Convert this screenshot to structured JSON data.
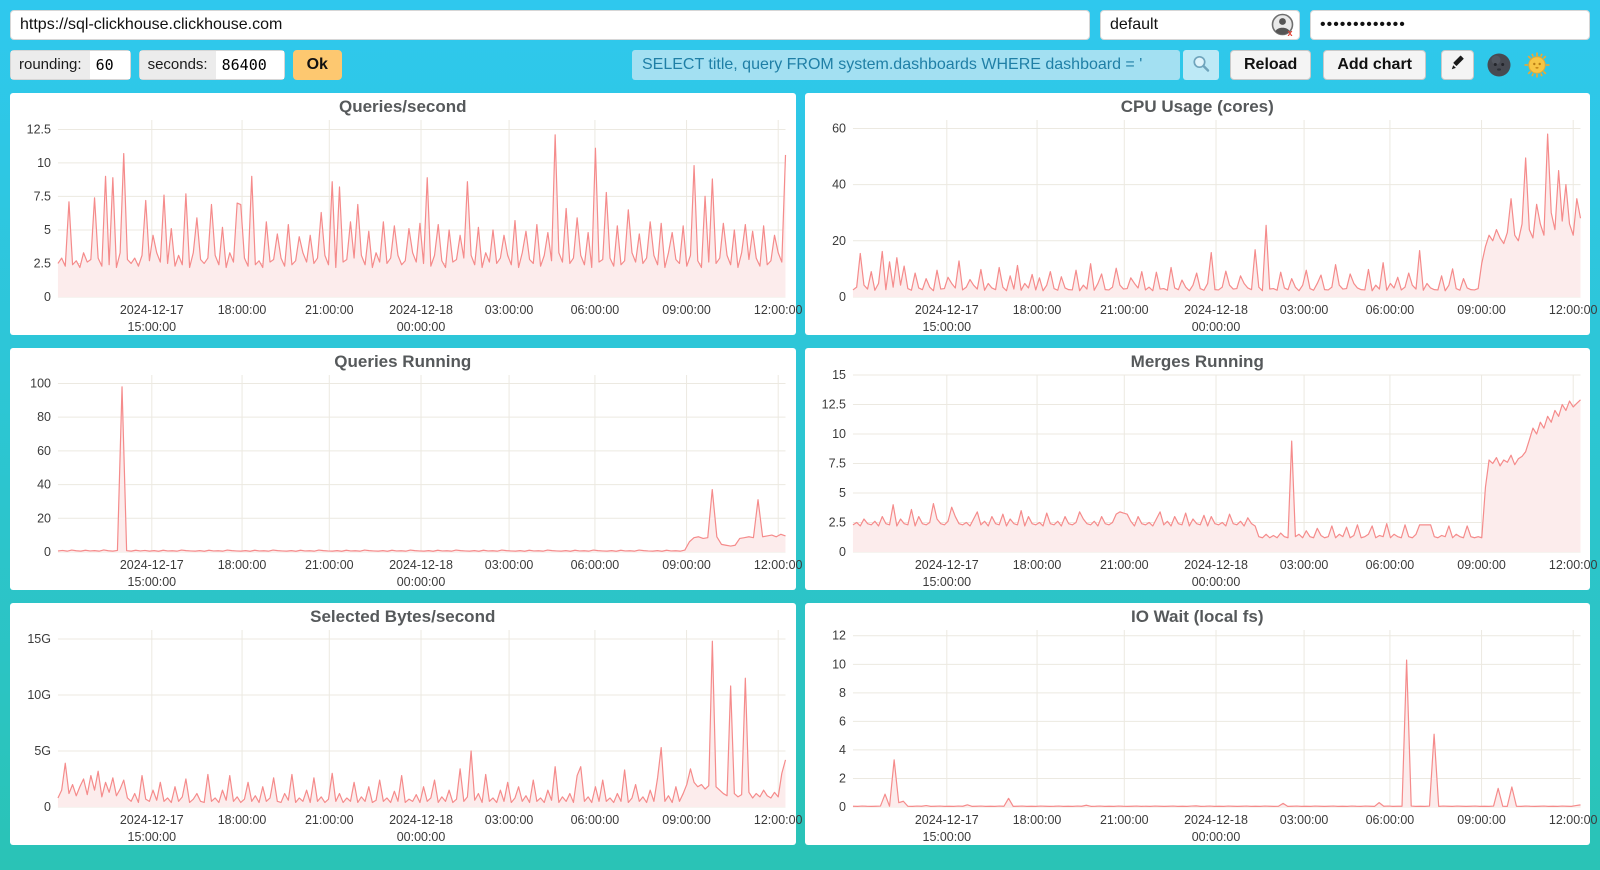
{
  "topbar": {
    "url_value": "https://sql-clickhouse.clickhouse.com",
    "user_value": "default",
    "password_masked": "•••••••••••••"
  },
  "toolbar": {
    "rounding_label": "rounding:",
    "rounding_value": "60",
    "seconds_label": "seconds:",
    "seconds_value": "86400",
    "ok_label": "Ok",
    "query_value": "SELECT title, query FROM system.dashboards WHERE dashboard = '",
    "reload_label": "Reload",
    "add_chart_label": "Add chart"
  },
  "colors": {
    "background_top": "#2fc8ee",
    "background_bottom": "#2ac3b6",
    "panel": "#ffffff",
    "series_line": "#f58b8b",
    "series_fill": "#fcecec",
    "grid": "#ece9e1",
    "ok_button": "#fdc870",
    "query_input_bg": "#a3e0f2",
    "query_input_text": "#1f7fa6"
  },
  "chart_axis": {
    "x_ticks": [
      {
        "f": 0.129,
        "label": "2024-12-17|15:00:00"
      },
      {
        "f": 0.253,
        "label": "18:00:00"
      },
      {
        "f": 0.373,
        "label": "21:00:00"
      },
      {
        "f": 0.499,
        "label": "2024-12-18|00:00:00"
      },
      {
        "f": 0.62,
        "label": "03:00:00"
      },
      {
        "f": 0.738,
        "label": "06:00:00"
      },
      {
        "f": 0.864,
        "label": "09:00:00"
      },
      {
        "f": 0.99,
        "label": "12:00:00"
      }
    ]
  },
  "chart_data": [
    {
      "type": "area",
      "title": "Queries/second",
      "ylim": [
        0,
        13.2
      ],
      "yticks": [
        {
          "v": 0,
          "label": "0"
        },
        {
          "v": 2.5,
          "label": "2.5"
        },
        {
          "v": 5,
          "label": "5"
        },
        {
          "v": 7.5,
          "label": "7.5"
        },
        {
          "v": 10,
          "label": "10"
        },
        {
          "v": 12.5,
          "label": "12.5"
        }
      ],
      "values": [
        2.5,
        2.9,
        2.3,
        7.1,
        2.4,
        2.7,
        2.2,
        3.3,
        2.6,
        2.8,
        7.4,
        2.9,
        2.3,
        9.0,
        2.4,
        8.9,
        2.2,
        3.3,
        10.7,
        2.8,
        2.5,
        2.9,
        2.3,
        3.1,
        7.2,
        2.7,
        4.6,
        3.3,
        2.6,
        7.6,
        2.5,
        5.1,
        2.3,
        3.1,
        2.4,
        7.7,
        2.2,
        3.3,
        5.9,
        2.8,
        2.5,
        2.9,
        6.9,
        3.1,
        2.4,
        5.2,
        2.2,
        3.3,
        2.6,
        7.0,
        6.9,
        2.9,
        2.3,
        9.0,
        2.4,
        2.7,
        2.2,
        5.6,
        2.6,
        2.8,
        4.7,
        2.9,
        2.3,
        5.4,
        2.4,
        2.7,
        4.5,
        3.3,
        2.6,
        4.6,
        2.5,
        2.9,
        6.3,
        3.1,
        2.4,
        8.6,
        2.2,
        8.2,
        2.6,
        2.8,
        5.6,
        2.9,
        6.9,
        3.1,
        2.4,
        4.9,
        2.2,
        3.3,
        2.6,
        5.6,
        2.5,
        2.9,
        5.3,
        3.1,
        2.4,
        2.7,
        5.1,
        3.3,
        2.6,
        5.5,
        2.5,
        8.9,
        2.3,
        3.1,
        5.4,
        2.7,
        2.2,
        5.0,
        2.6,
        2.8,
        4.6,
        2.9,
        8.6,
        3.1,
        2.4,
        5.2,
        2.2,
        3.3,
        2.6,
        5.0,
        2.5,
        2.9,
        4.6,
        3.1,
        2.4,
        5.7,
        2.2,
        3.3,
        4.9,
        2.8,
        2.5,
        5.4,
        2.3,
        3.1,
        4.8,
        2.7,
        12.1,
        3.3,
        2.6,
        6.6,
        2.5,
        2.9,
        5.9,
        3.1,
        2.4,
        4.8,
        2.2,
        11.1,
        2.6,
        2.8,
        7.8,
        2.9,
        2.3,
        5.3,
        2.4,
        2.7,
        6.5,
        3.3,
        2.6,
        4.7,
        2.5,
        2.9,
        5.6,
        3.1,
        2.4,
        5.5,
        2.2,
        3.3,
        4.8,
        2.8,
        2.5,
        5.3,
        2.3,
        3.1,
        9.8,
        2.7,
        2.2,
        7.5,
        2.6,
        8.8,
        2.5,
        2.9,
        5.5,
        3.1,
        2.4,
        5.0,
        2.2,
        3.3,
        5.4,
        2.8,
        4.9,
        2.9,
        2.3,
        5.3,
        2.4,
        2.7,
        4.6,
        3.3,
        2.6,
        10.6
      ]
    },
    {
      "type": "area",
      "title": "CPU Usage (cores)",
      "ylim": [
        0,
        63
      ],
      "yticks": [
        {
          "v": 0,
          "label": "0"
        },
        {
          "v": 20,
          "label": "20"
        },
        {
          "v": 40,
          "label": "40"
        },
        {
          "v": 60,
          "label": "60"
        }
      ],
      "values": [
        2.5,
        3.5,
        15.5,
        4.2,
        2.8,
        9.0,
        2.4,
        4.8,
        16.2,
        2.6,
        12.5,
        3.5,
        14.0,
        4.2,
        11.0,
        3.0,
        2.4,
        8.5,
        3.2,
        2.6,
        6.5,
        3.5,
        2.2,
        9.5,
        2.8,
        3.0,
        7.0,
        4.8,
        3.2,
        12.8,
        2.5,
        3.5,
        6.2,
        4.2,
        2.8,
        9.8,
        2.4,
        4.8,
        3.2,
        2.6,
        10.5,
        3.5,
        2.2,
        7.5,
        2.8,
        11.2,
        2.4,
        4.8,
        3.2,
        8.0,
        2.5,
        6.8,
        2.2,
        4.2,
        9.0,
        3.0,
        2.4,
        7.2,
        3.2,
        2.6,
        2.5,
        9.5,
        2.2,
        4.2,
        2.8,
        11.8,
        2.4,
        4.8,
        8.2,
        2.6,
        2.5,
        3.5,
        10.2,
        4.2,
        2.8,
        3.0,
        6.8,
        4.8,
        3.2,
        9.0,
        2.5,
        3.5,
        2.2,
        8.8,
        2.8,
        3.0,
        2.4,
        10.5,
        3.2,
        2.6,
        6.0,
        3.5,
        2.2,
        4.2,
        8.5,
        3.0,
        2.4,
        4.8,
        15.8,
        2.6,
        2.5,
        3.5,
        9.2,
        4.2,
        2.8,
        3.0,
        7.5,
        4.8,
        3.2,
        2.6,
        16.8,
        3.5,
        2.2,
        25.5,
        2.8,
        3.0,
        2.4,
        8.8,
        3.2,
        2.6,
        6.5,
        3.5,
        2.2,
        4.2,
        9.5,
        3.0,
        2.4,
        4.8,
        7.8,
        2.6,
        2.5,
        3.5,
        11.5,
        4.2,
        2.8,
        3.0,
        8.2,
        4.8,
        3.2,
        2.6,
        2.5,
        9.8,
        2.2,
        4.2,
        2.8,
        12.2,
        2.4,
        4.8,
        3.2,
        7.0,
        2.5,
        3.5,
        8.5,
        4.2,
        2.8,
        16.5,
        2.4,
        4.8,
        3.2,
        2.6,
        2.5,
        7.5,
        2.2,
        4.2,
        10.0,
        3.0,
        2.4,
        6.5,
        3.2,
        2.6,
        2.5,
        3.0,
        12,
        18,
        22,
        20,
        24,
        21,
        19,
        23,
        35,
        22,
        20,
        26,
        49.5,
        24,
        21,
        33,
        26,
        22,
        58,
        30,
        24,
        45,
        27,
        40,
        26,
        22,
        35,
        28
      ]
    },
    {
      "type": "area",
      "title": "Queries Running",
      "ylim": [
        0,
        105
      ],
      "yticks": [
        {
          "v": 0,
          "label": "0"
        },
        {
          "v": 20,
          "label": "20"
        },
        {
          "v": 40,
          "label": "40"
        },
        {
          "v": 60,
          "label": "60"
        },
        {
          "v": 80,
          "label": "80"
        },
        {
          "v": 100,
          "label": "100"
        }
      ],
      "values": [
        0.6,
        0.9,
        0.5,
        1.1,
        0.7,
        0.5,
        1.0,
        0.6,
        0.8,
        0.5,
        1.2,
        0.7,
        0.5,
        0.9,
        98,
        0.8,
        0.5,
        1.0,
        0.6,
        0.9,
        0.5,
        0.8,
        0.4,
        1.0,
        0.6,
        0.7,
        0.5,
        1.1,
        0.8,
        0.6,
        0.5,
        0.8,
        0.4,
        1.0,
        0.6,
        0.7,
        0.5,
        1.1,
        0.8,
        0.6,
        0.5,
        0.8,
        0.4,
        1.0,
        0.6,
        0.7,
        0.5,
        1.1,
        0.8,
        0.6,
        0.5,
        0.8,
        0.4,
        1.0,
        0.6,
        0.7,
        0.5,
        1.1,
        0.8,
        0.6,
        0.5,
        0.8,
        0.4,
        1.0,
        0.6,
        0.7,
        0.5,
        1.1,
        0.8,
        0.6,
        0.5,
        0.8,
        0.4,
        1.0,
        0.6,
        0.7,
        0.5,
        1.1,
        0.8,
        0.6,
        0.5,
        0.8,
        0.4,
        1.0,
        0.6,
        0.7,
        0.5,
        1.1,
        0.8,
        0.6,
        0.5,
        0.8,
        0.4,
        1.0,
        0.6,
        0.7,
        0.5,
        1.1,
        0.8,
        0.6,
        0.5,
        0.8,
        0.4,
        1.0,
        0.6,
        0.7,
        0.5,
        1.1,
        0.8,
        0.6,
        0.5,
        0.8,
        0.4,
        1.0,
        0.6,
        0.7,
        0.5,
        1.1,
        0.8,
        0.6,
        0.5,
        0.8,
        0.4,
        1.0,
        0.6,
        0.7,
        0.5,
        1.1,
        0.8,
        0.6,
        0.5,
        0.8,
        0.4,
        1.0,
        0.6,
        0.7,
        0.5,
        1.1,
        6,
        8.5,
        9,
        8,
        8.5,
        37,
        9,
        4.5,
        4,
        3.5,
        4,
        8,
        8.5,
        9,
        8.5,
        31,
        9,
        9.5,
        10,
        9,
        10.5,
        9.5
      ]
    },
    {
      "type": "area",
      "title": "Merges Running",
      "ylim": [
        0,
        15
      ],
      "yticks": [
        {
          "v": 0,
          "label": "0"
        },
        {
          "v": 2.5,
          "label": "2.5"
        },
        {
          "v": 5,
          "label": "5"
        },
        {
          "v": 7.5,
          "label": "7.5"
        },
        {
          "v": 10,
          "label": "10"
        },
        {
          "v": 12.5,
          "label": "12.5"
        },
        {
          "v": 15,
          "label": "15"
        }
      ],
      "values": [
        2.3,
        2.5,
        2.2,
        2.8,
        2.4,
        2.3,
        2.6,
        2.2,
        3.0,
        2.4,
        2.3,
        4.0,
        2.2,
        2.8,
        2.4,
        2.3,
        3.6,
        2.2,
        3.0,
        2.4,
        2.3,
        2.5,
        4.1,
        2.8,
        2.4,
        2.3,
        2.6,
        3.8,
        3.0,
        2.4,
        2.3,
        2.5,
        2.2,
        2.8,
        3.4,
        2.3,
        2.6,
        2.2,
        3.0,
        2.4,
        2.3,
        3.2,
        2.2,
        2.8,
        2.4,
        2.3,
        3.5,
        2.2,
        3.0,
        2.4,
        2.3,
        2.5,
        2.2,
        3.3,
        2.4,
        2.3,
        2.6,
        2.2,
        3.0,
        2.4,
        2.3,
        2.5,
        3.4,
        2.8,
        2.4,
        2.3,
        2.6,
        2.2,
        3.0,
        2.4,
        2.3,
        2.5,
        3.2,
        3.4,
        3.3,
        3.2,
        2.6,
        2.2,
        3.0,
        2.4,
        2.3,
        2.5,
        2.2,
        2.8,
        3.4,
        2.3,
        2.6,
        2.2,
        3.0,
        2.4,
        2.3,
        3.3,
        2.2,
        2.8,
        2.4,
        2.3,
        3.1,
        2.2,
        3.0,
        2.4,
        2.3,
        2.5,
        2.2,
        3.2,
        2.4,
        2.3,
        2.6,
        2.2,
        2.9,
        2.4,
        2.2,
        1.3,
        1.2,
        1.5,
        1.2,
        1.4,
        1.2,
        1.6,
        1.3,
        1.2,
        9.4,
        1.3,
        1.5,
        1.2,
        1.8,
        1.3,
        1.2,
        2.0,
        1.4,
        1.2,
        1.3,
        2.2,
        1.2,
        1.5,
        1.3,
        2.1,
        1.2,
        1.4,
        2.3,
        1.2,
        1.3,
        1.5,
        2.2,
        1.2,
        1.4,
        1.3,
        2.4,
        1.2,
        1.5,
        1.3,
        1.2,
        2.3,
        1.3,
        1.2,
        1.5,
        2.3,
        2.3,
        2.3,
        2.3,
        1.3,
        1.2,
        1.4,
        1.3,
        2.2,
        1.2,
        1.5,
        1.3,
        1.2,
        2.2,
        1.3,
        1.2,
        1.3,
        1.2,
        5.5,
        7.8,
        7.5,
        8.0,
        7.3,
        7.8,
        7.6,
        8.2,
        7.4,
        7.9,
        8.1,
        8.5,
        9.5,
        10.5,
        10.0,
        11.0,
        10.5,
        11.5,
        11.0,
        12.0,
        11.5,
        12.5,
        12.0,
        12.8,
        12.3,
        12.6,
        12.9
      ]
    },
    {
      "type": "area",
      "title": "Selected Bytes/second",
      "ylim": [
        0,
        15.8
      ],
      "yticks": [
        {
          "v": 0,
          "label": "0"
        },
        {
          "v": 5,
          "label": "5G"
        },
        {
          "v": 10,
          "label": "10G"
        },
        {
          "v": 15,
          "label": "15G"
        }
      ],
      "values": [
        0.8,
        1.5,
        3.9,
        1.2,
        2.0,
        1.0,
        1.8,
        2.5,
        1.1,
        2.8,
        1.5,
        3.2,
        0.9,
        2.2,
        1.3,
        2.6,
        1.0,
        1.6,
        2.4,
        0.8,
        0.5,
        1.2,
        0.4,
        2.8,
        0.7,
        0.5,
        1.5,
        0.6,
        2.2,
        0.5,
        0.8,
        0.4,
        1.8,
        0.5,
        0.9,
        2.5,
        0.4,
        0.7,
        1.2,
        0.5,
        0.4,
        2.9,
        0.5,
        0.8,
        0.4,
        1.5,
        0.6,
        2.8,
        0.5,
        0.9,
        0.4,
        0.7,
        2.2,
        0.5,
        1.0,
        0.4,
        1.8,
        0.5,
        0.8,
        2.6,
        0.5,
        0.4,
        1.2,
        0.6,
        2.9,
        0.4,
        0.8,
        0.5,
        1.5,
        0.4,
        2.6,
        0.5,
        0.9,
        0.4,
        0.7,
        3.0,
        0.5,
        1.2,
        0.4,
        0.8,
        0.5,
        2.2,
        0.4,
        0.9,
        0.5,
        1.8,
        0.4,
        0.6,
        2.4,
        0.5,
        0.8,
        0.4,
        1.4,
        0.5,
        2.8,
        0.4,
        0.7,
        0.5,
        1.1,
        0.4,
        1.8,
        0.5,
        0.8,
        2.4,
        0.4,
        0.9,
        0.5,
        1.5,
        0.4,
        0.7,
        3.4,
        0.5,
        0.9,
        5.0,
        0.6,
        1.2,
        0.4,
        2.9,
        0.5,
        0.8,
        0.4,
        1.5,
        0.5,
        2.2,
        0.4,
        0.8,
        1.8,
        0.5,
        1.0,
        0.4,
        2.4,
        0.5,
        0.8,
        0.4,
        1.5,
        0.6,
        3.6,
        0.4,
        0.9,
        0.5,
        1.2,
        0.4,
        2.8,
        3.6,
        0.5,
        0.9,
        0.4,
        1.8,
        0.5,
        2.4,
        0.5,
        0.8,
        0.4,
        1.2,
        0.5,
        3.3,
        0.4,
        0.8,
        2.0,
        0.5,
        0.9,
        0.4,
        1.5,
        0.5,
        2.6,
        5.3,
        0.5,
        1.0,
        0.4,
        1.8,
        0.5,
        1.2,
        2.0,
        3.4,
        2.2,
        1.8,
        2.0,
        1.6,
        1.9,
        14.8,
        1.8,
        1.5,
        1.2,
        1.0,
        10.8,
        1.2,
        0.9,
        1.1,
        11.5,
        1.3,
        0.8,
        1.2,
        0.9,
        1.5,
        1.0,
        0.8,
        1.3,
        0.9,
        3.0,
        4.2
      ]
    },
    {
      "type": "area",
      "title": "IO Wait (local fs)",
      "ylim": [
        0,
        12.4
      ],
      "yticks": [
        {
          "v": 0,
          "label": "0"
        },
        {
          "v": 2,
          "label": "2"
        },
        {
          "v": 4,
          "label": "4"
        },
        {
          "v": 6,
          "label": "6"
        },
        {
          "v": 8,
          "label": "8"
        },
        {
          "v": 10,
          "label": "10"
        },
        {
          "v": 12,
          "label": "12"
        }
      ],
      "values": [
        0.05,
        0.04,
        0.06,
        0.05,
        0.04,
        0.05,
        0.06,
        0.9,
        0.05,
        3.3,
        0.3,
        0.4,
        0.05,
        0.04,
        0.06,
        0.05,
        0.1,
        0.04,
        0.05,
        0.06,
        0.04,
        0.05,
        0.04,
        0.06,
        0.05,
        0.15,
        0.04,
        0.05,
        0.06,
        0.04,
        0.05,
        0.04,
        0.06,
        0.05,
        0.6,
        0.04,
        0.05,
        0.06,
        0.04,
        0.05,
        0.04,
        0.06,
        0.05,
        0.04,
        0.05,
        0.06,
        0.04,
        0.05,
        0.04,
        0.06,
        0.05,
        0.12,
        0.04,
        0.05,
        0.06,
        0.04,
        0.05,
        0.04,
        0.06,
        0.05,
        0.04,
        0.05,
        0.06,
        0.04,
        0.05,
        0.04,
        0.06,
        0.05,
        0.04,
        0.05,
        0.06,
        0.04,
        0.05,
        0.04,
        0.06,
        0.08,
        0.04,
        0.05,
        0.06,
        0.04,
        0.05,
        0.04,
        0.06,
        0.05,
        0.04,
        0.05,
        0.06,
        0.04,
        0.05,
        0.04,
        0.06,
        0.05,
        0.04,
        0.05,
        0.25,
        0.04,
        0.05,
        0.06,
        0.04,
        0.05,
        0.04,
        0.06,
        0.05,
        0.04,
        0.05,
        0.06,
        0.04,
        0.05,
        0.04,
        0.06,
        0.05,
        0.04,
        0.06,
        0.05,
        0.04,
        0.3,
        0.05,
        0.06,
        0.04,
        0.05,
        0.05,
        10.3,
        0.06,
        0.04,
        0.05,
        0.04,
        0.06,
        5.1,
        0.04,
        0.06,
        0.05,
        0.04,
        0.06,
        0.05,
        0.04,
        0.05,
        0.06,
        0.04,
        0.05,
        0.04,
        0.06,
        1.3,
        0.05,
        0.04,
        1.4,
        0.05,
        0.04,
        0.06,
        0.05,
        0.04,
        0.05,
        0.06,
        0.04,
        0.05,
        0.04,
        0.06,
        0.05,
        0.04,
        0.1,
        0.15
      ]
    }
  ]
}
